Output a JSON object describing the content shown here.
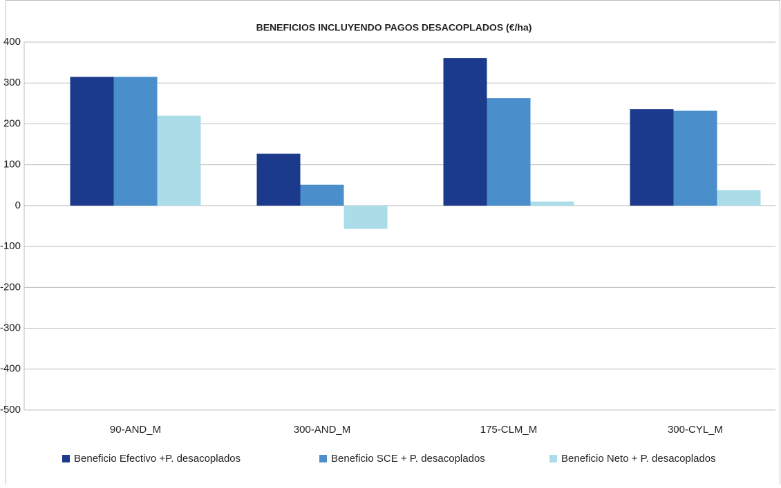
{
  "chart_data": {
    "type": "bar",
    "title": "BENEFICIOS INCLUYENDO PAGOS DESACOPLADOS (€/ha)",
    "categories": [
      "90-AND_M",
      "300-AND_M",
      "175-CLM_M",
      "300-CYL_M"
    ],
    "series": [
      {
        "name": "Beneficio Efectivo +P. desacoplados",
        "color": "#1b3a8c",
        "values": [
          315,
          127,
          361,
          236
        ]
      },
      {
        "name": "Beneficio SCE + P. desacoplados",
        "color": "#4a8ecb",
        "values": [
          315,
          51,
          263,
          232
        ]
      },
      {
        "name": "Beneficio Neto + P. desacoplados",
        "color": "#abdde8",
        "values": [
          220,
          -57,
          10,
          38
        ]
      }
    ],
    "ylim": [
      -500,
      400
    ],
    "yticks": [
      -500,
      -400,
      -300,
      -200,
      -100,
      0,
      100,
      200,
      300,
      400
    ],
    "grid": true,
    "legend": "bottom"
  }
}
